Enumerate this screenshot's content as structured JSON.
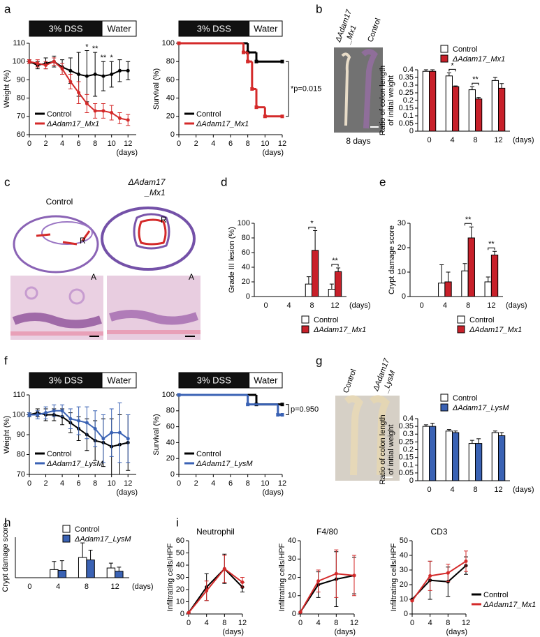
{
  "panels": [
    "a",
    "b",
    "c",
    "d",
    "e",
    "f",
    "g",
    "h",
    "i"
  ],
  "photo_b": {
    "mutant": [
      "ΔAdam17",
      "_Mx1"
    ],
    "control": "Control",
    "caption": "8 days"
  },
  "histology_c": {
    "control": "Control",
    "mutant": [
      "ΔAdam17",
      "_Mx1"
    ],
    "markers": [
      "R",
      "A",
      "R",
      "A"
    ]
  },
  "photo_g": {
    "control": "Control",
    "mutant": [
      "ΔAdam17",
      "_LysM"
    ]
  },
  "chart_data": [
    {
      "type": "line",
      "banner": [
        "3% DSS",
        "Water"
      ],
      "ylabel": "Weight (%)",
      "xlabel": "(days)",
      "x": [
        0,
        1,
        2,
        3,
        4,
        5,
        6,
        7,
        8,
        9,
        10,
        11,
        12
      ],
      "xlim": [
        0,
        13
      ],
      "xticks": [
        0,
        2,
        4,
        6,
        8,
        10,
        12
      ],
      "ylim": [
        60,
        110
      ],
      "yticks": [
        60,
        70,
        80,
        90,
        100,
        110
      ],
      "legend": "lower left",
      "series": [
        {
          "name": "Control",
          "color": "#000000",
          "values": [
            100,
            98,
            99,
            100,
            97,
            95,
            93,
            92,
            93,
            92,
            93,
            95,
            95
          ],
          "errors": [
            1,
            2,
            3,
            3,
            4,
            7,
            12,
            14,
            12,
            8,
            7,
            6,
            5
          ]
        },
        {
          "name": "ΔAdam17_Mx1",
          "color": "#d42a2a",
          "values": [
            100,
            99,
            98,
            100,
            96,
            89,
            83,
            77,
            73,
            73,
            72,
            69,
            68
          ],
          "errors": [
            1,
            2,
            2,
            2,
            3,
            4,
            6,
            5,
            4,
            4,
            4,
            3,
            3
          ]
        }
      ],
      "annotations": [
        {
          "label": "*",
          "x": 7
        },
        {
          "label": "**",
          "x": 8
        },
        {
          "label": "**",
          "x": 9
        },
        {
          "label": "*",
          "x": 10
        }
      ]
    },
    {
      "type": "step",
      "banner": [
        "3% DSS",
        "Water"
      ],
      "ylabel": "Survival (%)",
      "xlabel": "(days)",
      "xlim": [
        0,
        12
      ],
      "xticks": [
        0,
        2,
        4,
        6,
        8,
        10,
        12
      ],
      "ylim": [
        0,
        100
      ],
      "yticks": [
        0,
        20,
        40,
        60,
        80,
        100
      ],
      "legend": "lower left",
      "series": [
        {
          "name": "Control",
          "color": "#000000",
          "x": [
            0,
            8,
            9,
            12
          ],
          "values": [
            100,
            90,
            80,
            80
          ]
        },
        {
          "name": "ΔAdam17_Mx1",
          "color": "#d42a2a",
          "x": [
            0,
            7.5,
            8,
            8.5,
            9,
            10,
            12
          ],
          "values": [
            100,
            90,
            80,
            50,
            30,
            20,
            20
          ]
        }
      ],
      "annotations": [
        {
          "label": "*p=0.015"
        }
      ]
    },
    {
      "type": "bar",
      "ylabel": [
        "Ratio of colon length",
        "of initial weight"
      ],
      "xlabel": "(days)",
      "categories": [
        "0",
        "4",
        "8",
        "12"
      ],
      "ylim": [
        0,
        0.4
      ],
      "yticks": [
        0,
        0.05,
        0.1,
        0.15,
        0.2,
        0.25,
        0.3,
        0.35,
        0.4
      ],
      "legend": "top",
      "series": [
        {
          "name": "Control",
          "color": "#ffffff",
          "values": [
            0.39,
            0.36,
            0.27,
            0.33
          ],
          "errors": [
            0.01,
            0.02,
            0.02,
            0.02
          ]
        },
        {
          "name": "ΔAdam17_Mx1",
          "color": "#c8202a",
          "values": [
            0.39,
            0.29,
            0.21,
            0.28
          ],
          "errors": [
            0.01,
            0.005,
            0.01,
            0.03
          ]
        }
      ],
      "annotations": [
        {
          "label": "*",
          "category": "4"
        },
        {
          "label": "**",
          "category": "8"
        }
      ]
    },
    {
      "type": "bar",
      "ylabel": "Grade III lesion (%)",
      "xlabel": "(days)",
      "categories": [
        "0",
        "4",
        "8",
        "12"
      ],
      "ylim": [
        0,
        100
      ],
      "yticks": [
        0,
        20,
        40,
        60,
        80,
        100
      ],
      "legend": "bottom",
      "series": [
        {
          "name": "Control",
          "color": "#ffffff",
          "values": [
            0,
            0,
            17,
            10
          ],
          "errors": [
            0,
            0,
            10,
            7
          ]
        },
        {
          "name": "ΔAdam17_Mx1",
          "color": "#c8202a",
          "values": [
            0,
            0,
            63,
            34
          ],
          "errors": [
            0,
            0,
            27,
            5
          ]
        }
      ],
      "annotations": [
        {
          "label": "*",
          "category": "8"
        },
        {
          "label": "**",
          "category": "12"
        }
      ]
    },
    {
      "type": "bar",
      "ylabel": "Crypt damage score",
      "xlabel": "(days)",
      "categories": [
        "0",
        "4",
        "8",
        "12"
      ],
      "ylim": [
        0,
        30
      ],
      "yticks": [
        0,
        10,
        20,
        30
      ],
      "legend": "bottom",
      "series": [
        {
          "name": "Control",
          "color": "#ffffff",
          "values": [
            0,
            5.5,
            10.5,
            6
          ],
          "errors": [
            0,
            7.5,
            3,
            2
          ]
        },
        {
          "name": "ΔAdam17_Mx1",
          "color": "#c8202a",
          "values": [
            0,
            6,
            24,
            17
          ],
          "errors": [
            0,
            4,
            4.5,
            1.5
          ]
        }
      ],
      "annotations": [
        {
          "label": "**",
          "category": "8"
        },
        {
          "label": "**",
          "category": "12"
        }
      ]
    },
    {
      "type": "line",
      "banner": [
        "3% DSS",
        "Water"
      ],
      "ylabel": "Weight (%)",
      "xlabel": "(days)",
      "x": [
        0,
        1,
        2,
        3,
        4,
        5,
        6,
        7,
        8,
        9,
        10,
        11,
        12
      ],
      "xlim": [
        0,
        13
      ],
      "xticks": [
        0,
        2,
        4,
        6,
        8,
        10,
        12
      ],
      "ylim": [
        70,
        110
      ],
      "yticks": [
        70,
        80,
        90,
        100,
        110
      ],
      "legend": "lower left",
      "series": [
        {
          "name": "Control",
          "color": "#000000",
          "values": [
            100,
            101,
            100,
            100,
            99,
            96,
            93,
            90,
            87,
            86,
            84,
            85,
            86
          ],
          "errors": [
            1,
            2,
            3,
            3,
            4,
            5,
            6,
            8,
            10,
            12,
            14,
            15,
            14
          ]
        },
        {
          "name": "ΔAdam17_LysM",
          "color": "#3a62b4",
          "values": [
            100,
            100,
            101,
            102,
            102,
            98,
            97,
            96,
            93,
            88,
            91,
            91,
            88
          ],
          "errors": [
            1,
            2,
            3,
            3,
            3,
            5,
            7,
            8,
            9,
            12,
            12,
            15,
            12
          ]
        }
      ]
    },
    {
      "type": "step",
      "banner": [
        "3% DSS",
        "Water"
      ],
      "ylabel": "Survival (%)",
      "xlabel": "(days)",
      "xlim": [
        0,
        12
      ],
      "xticks": [
        0,
        2,
        4,
        6,
        8,
        10,
        12
      ],
      "ylim": [
        0,
        100
      ],
      "yticks": [
        0,
        20,
        40,
        60,
        80,
        100
      ],
      "legend": "lower left",
      "series": [
        {
          "name": "Control",
          "color": "#000000",
          "x": [
            0,
            9,
            12
          ],
          "values": [
            100,
            88,
            88
          ]
        },
        {
          "name": "ΔAdam17_LysM",
          "color": "#3a62b4",
          "x": [
            0,
            8,
            11.5,
            12
          ],
          "values": [
            100,
            88,
            75,
            75
          ]
        }
      ],
      "annotations": [
        {
          "label": "p=0.950"
        }
      ]
    },
    {
      "type": "bar",
      "ylabel": [
        "Ratio of colon length",
        "of initial weight"
      ],
      "xlabel": "(days)",
      "categories": [
        "0",
        "4",
        "8",
        "12"
      ],
      "ylim": [
        0,
        0.4
      ],
      "yticks": [
        0,
        0.05,
        0.1,
        0.15,
        0.2,
        0.25,
        0.3,
        0.35,
        0.4
      ],
      "legend": "top",
      "series": [
        {
          "name": "Control",
          "color": "#ffffff",
          "values": [
            0.35,
            0.32,
            0.24,
            0.31
          ],
          "errors": [
            0.01,
            0.01,
            0.02,
            0.01
          ]
        },
        {
          "name": "ΔAdam17_LysM",
          "color": "#3a62b4",
          "values": [
            0.35,
            0.31,
            0.24,
            0.29
          ],
          "errors": [
            0.02,
            0.01,
            0.03,
            0.02
          ]
        }
      ]
    },
    {
      "type": "bar",
      "ylabel": "Crypt damage score",
      "xlabel": "(days)",
      "categories": [
        "0",
        "4",
        "8",
        "12"
      ],
      "ylim": [
        0,
        25
      ],
      "legend": "top right",
      "series": [
        {
          "name": "Control",
          "color": "#ffffff",
          "values": [
            0,
            5,
            12.5,
            6
          ],
          "errors": [
            0,
            5,
            9,
            3
          ]
        },
        {
          "name": "ΔAdam17_LysM",
          "color": "#3a62b4",
          "values": [
            0,
            4.5,
            11,
            4
          ],
          "errors": [
            0,
            6,
            6,
            2.5
          ]
        }
      ]
    },
    {
      "type": "line",
      "title": "Neutrophil",
      "ylabel": "Infiltrating cells/HPF",
      "xlabel": "(days)",
      "x": [
        0,
        4,
        8,
        12
      ],
      "xlim": [
        0,
        12
      ],
      "xticks": [
        0,
        4,
        8,
        12
      ],
      "ylim": [
        0,
        60
      ],
      "yticks": [
        0,
        10,
        20,
        30,
        40,
        50,
        60
      ],
      "series": [
        {
          "name": "Control",
          "color": "#000000",
          "values": [
            1,
            22,
            37,
            22
          ],
          "errors": [
            0,
            11,
            12,
            4
          ]
        },
        {
          "name": "ΔAdam17_Mx1",
          "color": "#d42a2a",
          "values": [
            1,
            19,
            37,
            26
          ],
          "errors": [
            0,
            8,
            11,
            4
          ]
        }
      ]
    },
    {
      "type": "line",
      "title": "F4/80",
      "ylabel": "Infiltrating cells/HPF",
      "xlabel": "(days)",
      "x": [
        0,
        4,
        8,
        12
      ],
      "xlim": [
        0,
        12
      ],
      "xticks": [
        0,
        4,
        8,
        12
      ],
      "ylim": [
        0,
        40
      ],
      "yticks": [
        0,
        10,
        20,
        30,
        40
      ],
      "series": [
        {
          "name": "Control",
          "color": "#000000",
          "values": [
            1,
            16,
            19,
            21
          ],
          "errors": [
            0,
            7,
            15,
            10
          ]
        },
        {
          "name": "ΔAdam17_Mx1",
          "color": "#d42a2a",
          "values": [
            1,
            18,
            22,
            21
          ],
          "errors": [
            0,
            6,
            13,
            11
          ]
        }
      ]
    },
    {
      "type": "line",
      "title": "CD3",
      "ylabel": "Infiltrating cells/HPF",
      "xlabel": "(days)",
      "x": [
        0,
        4,
        8,
        12
      ],
      "xlim": [
        0,
        12
      ],
      "xticks": [
        0,
        4,
        8,
        12
      ],
      "ylim": [
        0,
        50
      ],
      "yticks": [
        0,
        10,
        20,
        30,
        40,
        50
      ],
      "legend": "right",
      "series": [
        {
          "name": "Control",
          "color": "#000000",
          "values": [
            10,
            23,
            22,
            33
          ],
          "errors": [
            0,
            13,
            10,
            6
          ]
        },
        {
          "name": "ΔAdam17_Mx1",
          "color": "#d42a2a",
          "values": [
            9,
            26,
            28,
            36
          ],
          "errors": [
            0,
            10,
            6,
            7
          ]
        }
      ]
    }
  ]
}
